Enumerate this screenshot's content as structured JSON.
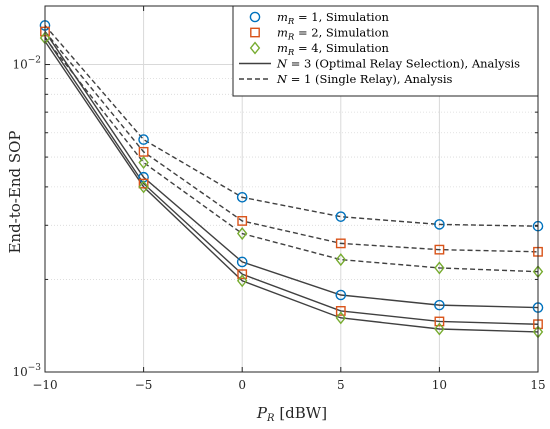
{
  "chart_data": {
    "type": "line",
    "title": "",
    "xlabel_base": "P",
    "xlabel_sub": "R",
    "xlabel_unit": " [dBW]",
    "ylabel": "End-to-End SOP",
    "x": [
      -10,
      -5,
      0,
      5,
      10,
      15
    ],
    "xticks": [
      -10,
      -5,
      0,
      5,
      10,
      15
    ],
    "xtick_labels": [
      "−10",
      "−5",
      "0",
      "5",
      "10",
      "15"
    ],
    "xlim": [
      -10,
      15
    ],
    "ylim": [
      0.001,
      0.0155
    ],
    "yscale": "log",
    "yticks": [
      {
        "value": 0.01,
        "base": "10",
        "exp": "−2"
      },
      {
        "value": 0.001,
        "base": "10",
        "exp": "−3"
      }
    ],
    "grid": true,
    "legend_position": "top-right",
    "colors": {
      "m1": "#0072bd",
      "m2": "#d95319",
      "m4": "#77ac30",
      "analysis": "#404040"
    },
    "series": [
      {
        "name": "m_R = 1, Simulation",
        "legend": {
          "var": "m",
          "sub": "R",
          "rest": " = 1, Simulation"
        },
        "kind": "marker",
        "marker": "circle",
        "color": "#0072bd",
        "values": [
          0.0134,
          0.0057,
          0.0037,
          0.0032,
          0.00302,
          0.00298
        ]
      },
      {
        "name": "m_R = 2, Simulation",
        "legend": {
          "var": "m",
          "sub": "R",
          "rest": " = 2, Simulation"
        },
        "kind": "marker",
        "marker": "square",
        "color": "#d95319",
        "values": [
          0.0128,
          0.0052,
          0.0031,
          0.00262,
          0.0025,
          0.00246
        ]
      },
      {
        "name": "m_R = 4, Simulation",
        "legend": {
          "var": "m",
          "sub": "R",
          "rest": " = 4, Simulation"
        },
        "kind": "marker",
        "marker": "diamond",
        "color": "#77ac30",
        "values": [
          0.0122,
          0.0048,
          0.00282,
          0.00232,
          0.00218,
          0.00212
        ]
      },
      {
        "name": "N = 3 (Optimal Relay Selection), Analysis",
        "legend": {
          "var": "N",
          "sub": "",
          "rest": " = 3 (Optimal Relay Selection), Analysis"
        },
        "kind": "line",
        "dash": "solid",
        "color": "#404040",
        "curves": [
          [
            0.0128,
            0.0043,
            0.00228,
            0.00178,
            0.00165,
            0.00162
          ],
          [
            0.0123,
            0.0041,
            0.00208,
            0.00158,
            0.00146,
            0.00143
          ],
          [
            0.0119,
            0.004,
            0.00198,
            0.0015,
            0.00138,
            0.00135
          ]
        ]
      },
      {
        "name": "N = 1 (Single Relay), Analysis",
        "legend": {
          "var": "N",
          "sub": "",
          "rest": " = 1 (Single Relay), Analysis"
        },
        "kind": "line",
        "dash": "dashed",
        "color": "#404040",
        "curves": [
          [
            0.0134,
            0.0057,
            0.0037,
            0.0032,
            0.00302,
            0.00298
          ],
          [
            0.0128,
            0.0052,
            0.0031,
            0.00262,
            0.0025,
            0.00246
          ],
          [
            0.0122,
            0.0048,
            0.00282,
            0.00232,
            0.00218,
            0.00212
          ]
        ]
      }
    ],
    "markers_on_solid": {
      "m1": [
        0.0043,
        0.00228,
        0.00178,
        0.00165,
        0.00162
      ],
      "m2": [
        0.0041,
        0.00208,
        0.00158,
        0.00146,
        0.00143
      ],
      "m4": [
        0.004,
        0.00198,
        0.0015,
        0.00138,
        0.00135
      ]
    }
  }
}
